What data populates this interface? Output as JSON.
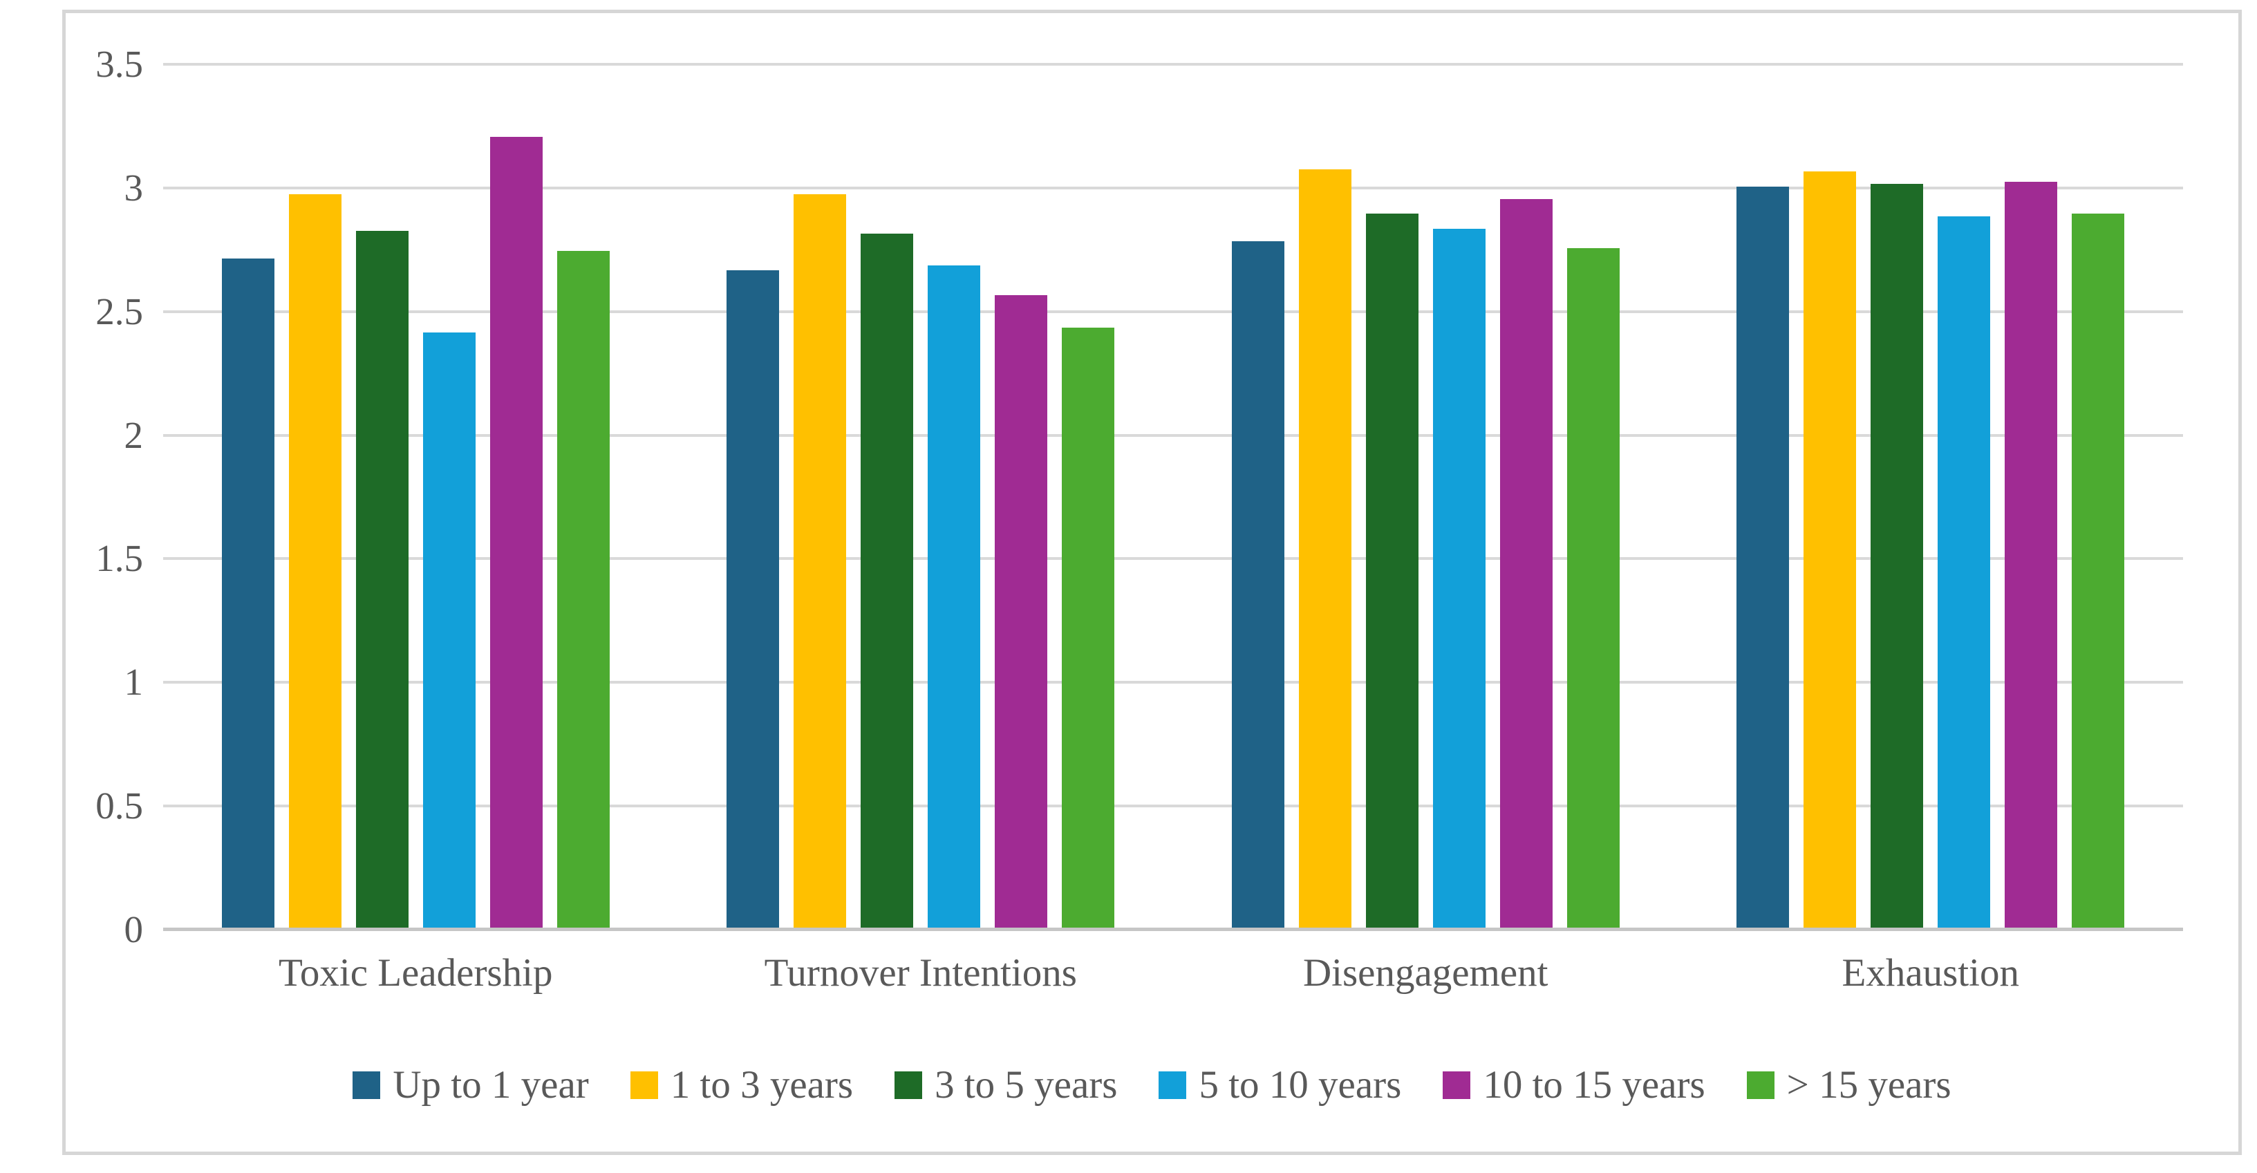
{
  "chart_data": {
    "type": "bar",
    "title": "",
    "xlabel": "",
    "ylabel": "",
    "categories": [
      "Toxic Leadership",
      "Turnover Intentions",
      "Disengagement",
      "Exhaustion"
    ],
    "series": [
      {
        "name": "Up to 1 year",
        "color": "#1f6287",
        "values": [
          2.71,
          2.66,
          2.78,
          3.0
        ]
      },
      {
        "name": "1 to 3 years",
        "color": "#ffc000",
        "values": [
          2.97,
          2.97,
          3.07,
          3.06
        ]
      },
      {
        "name": "3 to 5 years",
        "color": "#1e6b27",
        "values": [
          2.82,
          2.81,
          2.89,
          3.01
        ]
      },
      {
        "name": "5 to 10 years",
        "color": "#12a0d9",
        "values": [
          2.41,
          2.68,
          2.83,
          2.88
        ]
      },
      {
        "name": "10 to 15 years",
        "color": "#a02b93",
        "values": [
          3.2,
          2.56,
          2.95,
          3.02
        ]
      },
      {
        "name": "> 15 years",
        "color": "#4cab30",
        "values": [
          2.74,
          2.43,
          2.75,
          2.89
        ]
      }
    ],
    "yticks": [
      "0",
      "0.5",
      "1",
      "1.5",
      "2",
      "2.5",
      "3",
      "3.5"
    ],
    "ytick_values": [
      0,
      0.5,
      1,
      1.5,
      2,
      2.5,
      3,
      3.5
    ],
    "ylim": [
      0,
      3.5
    ],
    "grid": true,
    "legend_position": "bottom"
  },
  "ui_colors": {
    "border": "#d6d6d6",
    "gridline": "#d9d9d9",
    "axis_line": "#c6c6c6",
    "text": "#595959",
    "background": "#ffffff"
  }
}
